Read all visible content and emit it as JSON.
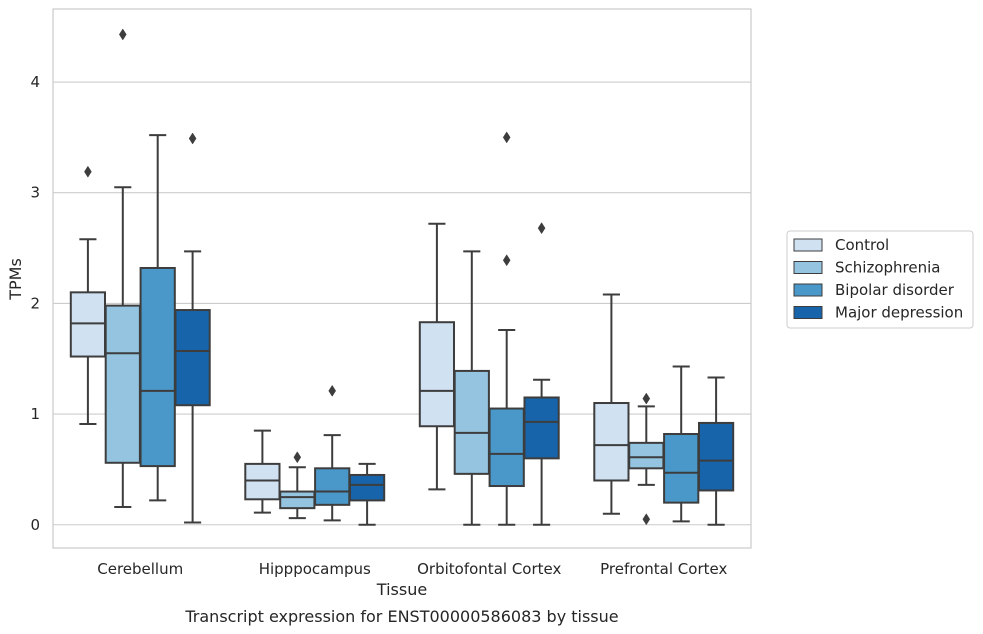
{
  "chart_data": {
    "type": "box",
    "caption": "Transcript expression for ENST00000586083 by tissue",
    "xlabel": "Tissue",
    "ylabel": "TPMs",
    "ylim": [
      -0.21,
      4.66
    ],
    "yticks": [
      0,
      1,
      2,
      3,
      4
    ],
    "grid": true,
    "legend_position": "right",
    "categories": [
      "Cerebellum",
      "Hipppocampus",
      "Orbitofontal Cortex",
      "Prefrontal Cortex"
    ],
    "series": [
      {
        "name": "Control",
        "color": "#d0e1f2",
        "boxes": [
          {
            "whisker_low": 0.91,
            "q1": 1.52,
            "median": 1.82,
            "q3": 2.1,
            "whisker_high": 2.58,
            "outliers": [
              3.19
            ]
          },
          {
            "whisker_low": 0.11,
            "q1": 0.23,
            "median": 0.4,
            "q3": 0.55,
            "whisker_high": 0.85,
            "outliers": []
          },
          {
            "whisker_low": 0.32,
            "q1": 0.89,
            "median": 1.21,
            "q3": 1.83,
            "whisker_high": 2.72,
            "outliers": []
          },
          {
            "whisker_low": 0.1,
            "q1": 0.4,
            "median": 0.72,
            "q3": 1.1,
            "whisker_high": 2.08,
            "outliers": []
          }
        ]
      },
      {
        "name": "Schizophrenia",
        "color": "#94c4df",
        "boxes": [
          {
            "whisker_low": 0.16,
            "q1": 0.56,
            "median": 1.55,
            "q3": 1.98,
            "whisker_high": 3.05,
            "outliers": [
              4.43
            ]
          },
          {
            "whisker_low": 0.06,
            "q1": 0.15,
            "median": 0.25,
            "q3": 0.3,
            "whisker_high": 0.52,
            "outliers": [
              0.61
            ]
          },
          {
            "whisker_low": 0.0,
            "q1": 0.46,
            "median": 0.83,
            "q3": 1.39,
            "whisker_high": 2.47,
            "outliers": []
          },
          {
            "whisker_low": 0.36,
            "q1": 0.51,
            "median": 0.61,
            "q3": 0.74,
            "whisker_high": 1.07,
            "outliers": [
              1.14,
              0.05
            ]
          }
        ]
      },
      {
        "name": "Bipolar disorder",
        "color": "#4a98c9",
        "boxes": [
          {
            "whisker_low": 0.22,
            "q1": 0.53,
            "median": 1.21,
            "q3": 2.32,
            "whisker_high": 3.52,
            "outliers": []
          },
          {
            "whisker_low": 0.04,
            "q1": 0.18,
            "median": 0.3,
            "q3": 0.51,
            "whisker_high": 0.81,
            "outliers": [
              1.21
            ]
          },
          {
            "whisker_low": 0.0,
            "q1": 0.35,
            "median": 0.64,
            "q3": 1.05,
            "whisker_high": 1.76,
            "outliers": [
              2.39,
              3.5
            ]
          },
          {
            "whisker_low": 0.03,
            "q1": 0.2,
            "median": 0.47,
            "q3": 0.82,
            "whisker_high": 1.43,
            "outliers": []
          }
        ]
      },
      {
        "name": "Major depression",
        "color": "#1764ab",
        "boxes": [
          {
            "whisker_low": 0.02,
            "q1": 1.08,
            "median": 1.57,
            "q3": 1.94,
            "whisker_high": 2.47,
            "outliers": [
              3.49
            ]
          },
          {
            "whisker_low": 0.0,
            "q1": 0.22,
            "median": 0.36,
            "q3": 0.45,
            "whisker_high": 0.55,
            "outliers": []
          },
          {
            "whisker_low": 0.0,
            "q1": 0.6,
            "median": 0.93,
            "q3": 1.15,
            "whisker_high": 1.31,
            "outliers": [
              2.68
            ]
          },
          {
            "whisker_low": 0.0,
            "q1": 0.31,
            "median": 0.58,
            "q3": 0.92,
            "whisker_high": 1.33,
            "outliers": []
          }
        ]
      }
    ]
  }
}
